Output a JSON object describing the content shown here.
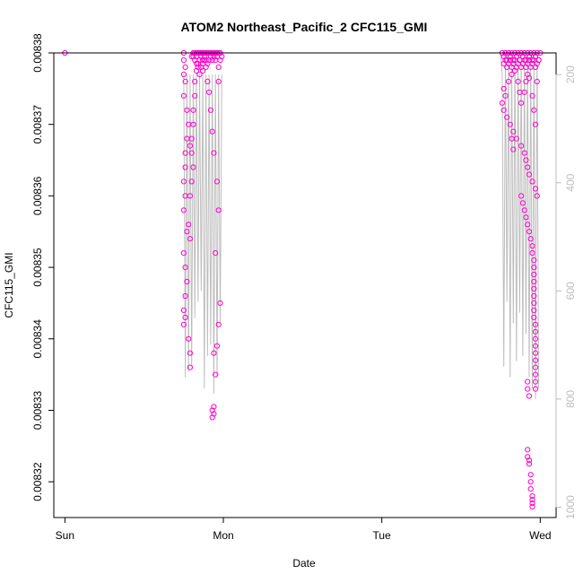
{
  "chart_data": {
    "type": "scatter",
    "title": "ATOM2 Northeast_Pacific_2 CFC115_GMI",
    "xlabel": "Date",
    "ylabel": "CFC115_GMI",
    "x_ticks": [
      "Sun",
      "Mon",
      "Tue",
      "Wed"
    ],
    "x_unit": "days",
    "xlim": [
      -0.07,
      3.1
    ],
    "ylim": [
      0.008315,
      0.00838
    ],
    "y_ticks": [
      0.00832,
      0.00833,
      0.00834,
      0.00835,
      0.00836,
      0.00837,
      0.00838
    ],
    "y_tick_labels": [
      "0.00832",
      "0.00833",
      "0.00834",
      "0.00835",
      "0.00836",
      "0.00837",
      "0.00838"
    ],
    "y2_ticks": [
      200,
      400,
      600,
      800,
      1000
    ],
    "y2_lim": [
      1019,
      160
    ],
    "grid": false,
    "colors": {
      "points": "#ff00cc",
      "profile_line": "#bdbdbd",
      "axis": "#000000",
      "right_axis": "#bdbdbd"
    },
    "series": [
      {
        "kind": "points",
        "x": [
          0.0,
          0.75,
          0.75,
          0.76,
          0.75,
          0.76,
          0.75,
          0.77,
          0.78,
          0.77,
          0.76,
          0.76,
          0.75,
          0.76,
          0.75,
          0.77,
          0.75,
          0.76,
          0.77,
          0.76,
          0.75,
          0.76,
          0.75,
          0.78,
          0.79,
          0.79,
          0.8,
          0.81,
          0.81,
          0.82,
          0.82,
          0.83,
          0.83,
          0.83,
          0.84,
          0.85,
          0.85,
          0.86,
          0.86,
          0.87,
          0.87,
          0.88,
          0.88,
          0.89,
          0.89,
          0.9,
          0.9,
          0.91,
          0.91,
          0.92,
          0.92,
          0.93,
          0.93,
          0.94,
          0.94,
          0.95,
          0.95,
          0.96,
          0.96,
          0.97,
          0.97,
          0.98,
          0.98,
          0.99,
          0.79,
          0.8,
          0.8,
          0.81,
          0.8,
          0.79,
          0.78,
          0.79,
          0.81,
          0.81,
          0.82,
          0.82,
          0.83,
          0.84,
          0.84,
          0.85,
          0.85,
          0.86,
          0.87,
          0.87,
          0.88,
          0.89,
          0.9,
          0.91,
          0.92,
          0.93,
          0.94,
          0.96,
          0.97,
          0.95,
          0.94,
          0.93,
          0.93,
          0.94,
          0.94,
          0.95,
          0.96,
          0.97,
          0.98,
          0.97,
          2.76,
          2.77,
          2.78,
          2.79,
          2.8,
          2.81,
          2.82,
          2.83,
          2.84,
          2.85,
          2.86,
          2.87,
          2.88,
          2.89,
          2.9,
          2.91,
          2.92,
          2.93,
          2.94,
          2.95,
          2.96,
          2.97,
          2.98,
          2.99,
          3.0,
          2.77,
          2.78,
          2.79,
          2.8,
          2.81,
          2.82,
          2.83,
          2.84,
          2.85,
          2.86,
          2.87,
          2.88,
          2.89,
          2.9,
          2.91,
          2.92,
          2.93,
          2.94,
          2.95,
          2.96,
          2.97,
          2.98,
          2.99,
          2.77,
          2.78,
          2.8,
          2.82,
          2.84,
          2.86,
          2.87,
          2.88,
          2.9,
          2.91,
          2.92,
          2.93,
          2.95,
          2.96,
          2.97,
          2.98,
          2.76,
          2.77,
          2.79,
          2.81,
          2.83,
          2.85,
          2.88,
          2.9,
          2.91,
          2.92,
          2.93,
          2.95,
          2.97,
          2.98,
          2.82,
          2.83,
          2.88,
          2.89,
          2.9,
          2.91,
          2.92,
          2.93,
          2.94,
          2.95,
          2.95,
          2.96,
          2.96,
          2.96,
          2.96,
          2.96,
          2.96,
          2.96,
          2.96,
          2.96,
          2.97,
          2.97,
          2.97,
          2.97,
          2.97,
          2.97,
          2.97,
          2.97,
          2.97,
          2.97,
          2.92,
          2.92,
          2.93,
          2.93,
          2.94,
          2.94,
          2.94,
          2.95,
          2.95,
          2.95,
          2.95,
          2.93,
          2.92,
          2.92
        ],
        "y": [
          0.00838,
          0.00838,
          0.008379,
          0.008378,
          0.008377,
          0.008376,
          0.008374,
          0.008372,
          0.00837,
          0.008368,
          0.008366,
          0.008364,
          0.008362,
          0.00836,
          0.008358,
          0.008355,
          0.008352,
          0.00835,
          0.008348,
          0.008346,
          0.008344,
          0.008343,
          0.008342,
          0.00834,
          0.008338,
          0.008336,
          0.0083795,
          0.00838,
          0.0083795,
          0.00838,
          0.008379,
          0.00838,
          0.0083785,
          0.0083795,
          0.00838,
          0.008379,
          0.00838,
          0.0083795,
          0.00838,
          0.008379,
          0.00838,
          0.0083795,
          0.00838,
          0.008379,
          0.00838,
          0.0083785,
          0.00838,
          0.008379,
          0.00838,
          0.0083795,
          0.00838,
          0.008379,
          0.00838,
          0.0083795,
          0.00838,
          0.008379,
          0.00838,
          0.0083795,
          0.00838,
          0.008378,
          0.00838,
          0.008379,
          0.00838,
          0.0083795,
          0.008367,
          0.008368,
          0.008366,
          0.008364,
          0.008362,
          0.00836,
          0.008356,
          0.008354,
          0.00837,
          0.008372,
          0.008374,
          0.008376,
          0.0083775,
          0.0083785,
          0.008378,
          0.008377,
          0.008379,
          0.008378,
          0.0083785,
          0.0083775,
          0.008379,
          0.008378,
          0.008376,
          0.0083745,
          0.008372,
          0.008369,
          0.008366,
          0.008362,
          0.008358,
          0.008352,
          0.008338,
          0.00833,
          0.008329,
          0.0083295,
          0.0083305,
          0.008335,
          0.008339,
          0.008342,
          0.008345,
          0.008376,
          0.00838,
          0.0083795,
          0.00838,
          0.008379,
          0.00838,
          0.0083795,
          0.00838,
          0.008379,
          0.00838,
          0.0083795,
          0.00838,
          0.008379,
          0.00838,
          0.0083795,
          0.00838,
          0.008379,
          0.00838,
          0.0083795,
          0.00838,
          0.008379,
          0.00838,
          0.0083795,
          0.00838,
          0.008379,
          0.00838,
          0.0083785,
          0.008379,
          0.008378,
          0.0083785,
          0.008379,
          0.008378,
          0.0083785,
          0.008379,
          0.008378,
          0.0083785,
          0.008379,
          0.008378,
          0.0083785,
          0.008379,
          0.008378,
          0.0083785,
          0.008379,
          0.008378,
          0.0083785,
          0.008379,
          0.008378,
          0.0083785,
          0.008379,
          0.008375,
          0.008374,
          0.008376,
          0.008377,
          0.0083775,
          0.008376,
          0.0083745,
          0.008373,
          0.0083745,
          0.008376,
          0.008377,
          0.0083765,
          0.008374,
          0.008372,
          0.00837,
          0.008376,
          0.008373,
          0.008372,
          0.008371,
          0.00837,
          0.008369,
          0.008368,
          0.008367,
          0.008366,
          0.008365,
          0.008364,
          0.008363,
          0.008362,
          0.008361,
          0.00836,
          0.008368,
          0.0083665,
          0.00836,
          0.008359,
          0.008358,
          0.008357,
          0.008356,
          0.008355,
          0.008354,
          0.008353,
          0.008352,
          0.008351,
          0.00835,
          0.008349,
          0.008348,
          0.008347,
          0.008346,
          0.008345,
          0.008344,
          0.008343,
          0.008342,
          0.008341,
          0.00834,
          0.008339,
          0.008338,
          0.008337,
          0.008336,
          0.008335,
          0.008334,
          0.008333,
          0.008334,
          0.008333,
          0.008332,
          0.008323,
          0.008321,
          0.00832,
          0.008319,
          0.008318,
          0.0083175,
          0.008317,
          0.0083165,
          0.0083225,
          0.0083235,
          0.0083245
        ]
      },
      {
        "kind": "profile_line",
        "x": [
          0.75,
          0.76,
          0.77,
          0.78,
          0.79,
          0.8,
          0.81,
          0.82,
          0.83,
          0.84,
          0.85,
          0.86,
          0.87,
          0.88,
          0.89,
          0.9,
          0.91,
          0.92,
          0.93,
          0.94,
          0.95,
          0.96,
          0.97,
          0.98,
          0.99
        ],
        "y2": [
          200,
          760,
          200,
          750,
          200,
          740,
          200,
          650,
          200,
          620,
          200,
          600,
          200,
          780,
          200,
          720,
          200,
          700,
          200,
          790,
          200,
          760,
          200,
          660,
          200
        ]
      },
      {
        "kind": "profile_line",
        "x": [
          2.75,
          2.76,
          2.77,
          2.78,
          2.79,
          2.8,
          2.81,
          2.82,
          2.83,
          2.84,
          2.85,
          2.86,
          2.87,
          2.88,
          2.89,
          2.9,
          2.91,
          2.92,
          2.93,
          2.94,
          2.95,
          2.96,
          2.97,
          2.98,
          2.99
        ],
        "y2": [
          160,
          200,
          740,
          160,
          620,
          160,
          760,
          160,
          660,
          160,
          730,
          160,
          640,
          160,
          720,
          160,
          680,
          160,
          760,
          160,
          780,
          160,
          800,
          160,
          780
        ]
      }
    ]
  }
}
